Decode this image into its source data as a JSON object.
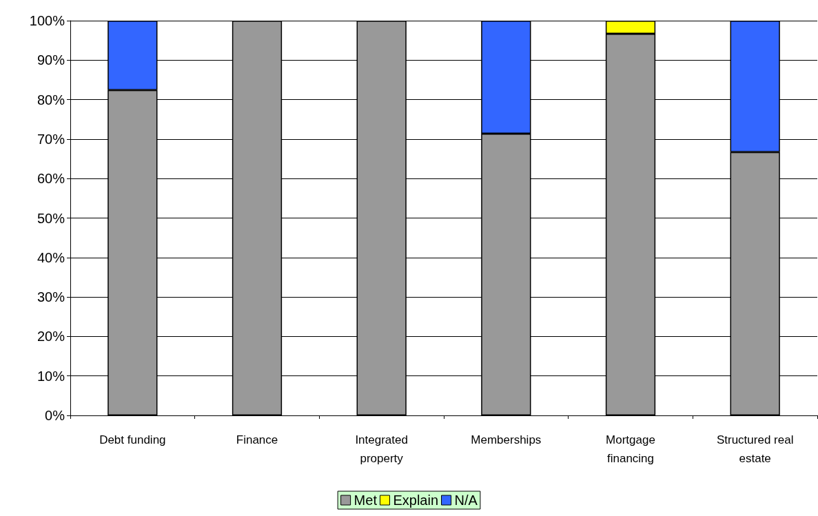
{
  "chart_data": {
    "type": "bar",
    "stacked": true,
    "categories": [
      "Debt funding",
      "Finance",
      "Integrated\nproperty",
      "Memberships",
      "Mortgage\nfinancing",
      "Structured real\nestate"
    ],
    "series": [
      {
        "name": "Met",
        "color": "#999999",
        "values": [
          82.4,
          100,
          100,
          71.4,
          96.7,
          66.7
        ]
      },
      {
        "name": "Explain",
        "color": "#ffff00",
        "values": [
          0,
          0,
          0,
          0,
          3.3,
          0
        ]
      },
      {
        "name": "N/A",
        "color": "#3366ff",
        "values": [
          17.6,
          0,
          0,
          28.6,
          0,
          33.3
        ]
      }
    ],
    "ylim": [
      0,
      100
    ],
    "yticks": [
      {
        "value": 0,
        "label": "0%"
      },
      {
        "value": 10,
        "label": "10%"
      },
      {
        "value": 20,
        "label": "20%"
      },
      {
        "value": 30,
        "label": "30%"
      },
      {
        "value": 40,
        "label": "40%"
      },
      {
        "value": 50,
        "label": "50%"
      },
      {
        "value": 60,
        "label": "60%"
      },
      {
        "value": 70,
        "label": "70%"
      },
      {
        "value": 80,
        "label": "80%"
      },
      {
        "value": 90,
        "label": "90%"
      },
      {
        "value": 100,
        "label": "100%"
      }
    ],
    "grid": "y",
    "legend": "bottom"
  }
}
